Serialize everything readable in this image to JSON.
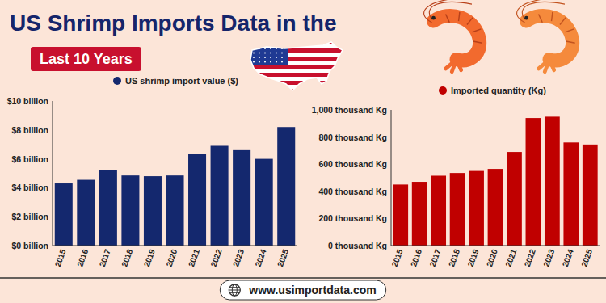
{
  "header": {
    "title": "US Shrimp Imports Data in the",
    "subtitle": "Last 10 Years"
  },
  "chart_data": [
    {
      "type": "bar",
      "categories": [
        "2015",
        "2016",
        "2017",
        "2018",
        "2019",
        "2020",
        "2021",
        "2022",
        "2023",
        "2024",
        "2025"
      ],
      "series": [
        {
          "name": "US shrimp import value ($)",
          "color": "#14286e",
          "values": [
            4.3,
            4.55,
            5.2,
            4.85,
            4.8,
            4.85,
            6.35,
            6.9,
            6.6,
            6.0,
            8.2
          ]
        }
      ],
      "ylim": [
        0,
        10
      ],
      "yticks": [
        {
          "value": 0,
          "label": "$0 billion"
        },
        {
          "value": 2,
          "label": "$2 billion"
        },
        {
          "value": 4,
          "label": "$4 billion"
        },
        {
          "value": 6,
          "label": "$6 billion"
        },
        {
          "value": 8,
          "label": "$8 billion"
        },
        {
          "value": 10,
          "label": "$10 billion"
        }
      ],
      "grid": false,
      "legend": "top"
    },
    {
      "type": "bar",
      "categories": [
        "2015",
        "2016",
        "2017",
        "2018",
        "2019",
        "2020",
        "2021",
        "2022",
        "2023",
        "2024",
        "2025"
      ],
      "series": [
        {
          "name": "Imported quantity (Kg)",
          "color": "#c00000",
          "values": [
            450,
            470,
            515,
            535,
            550,
            565,
            690,
            940,
            950,
            760,
            745
          ]
        }
      ],
      "ylim": [
        0,
        1000
      ],
      "yticks": [
        {
          "value": 0,
          "label": "0 thousand Kg"
        },
        {
          "value": 200,
          "label": "200 thousand Kg"
        },
        {
          "value": 400,
          "label": "400 thousand Kg"
        },
        {
          "value": 600,
          "label": "600 thousand Kg"
        },
        {
          "value": 800,
          "label": "800 thousand Kg"
        },
        {
          "value": 1000,
          "label": "1,000 thousand Kg"
        }
      ],
      "grid": false,
      "legend": "top"
    }
  ],
  "footer": {
    "website": "www.usimportdata.com"
  }
}
